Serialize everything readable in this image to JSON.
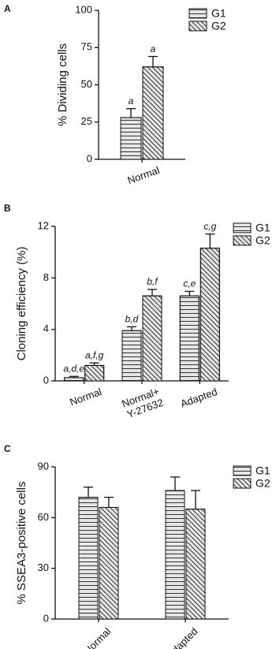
{
  "chart_data": [
    {
      "type": "bar",
      "panel": "A",
      "ylabel": "% Dividing cells",
      "categories": [
        "Normal"
      ],
      "series": [
        {
          "name": "G1",
          "color": "#e6e6e6",
          "hatch": "horizontal",
          "values": [
            28
          ],
          "errors": [
            6
          ],
          "annotations": [
            "a"
          ]
        },
        {
          "name": "G2",
          "color": "#e6e6e6",
          "hatch": "diagonal",
          "values": [
            62
          ],
          "errors": [
            7
          ],
          "annotations": [
            "a"
          ]
        }
      ],
      "ylim": [
        0,
        100
      ],
      "yticks": [
        0,
        25,
        50,
        75,
        100
      ],
      "legend": "upper right"
    },
    {
      "type": "bar",
      "panel": "B",
      "ylabel": "Cloning efficiency (%)",
      "categories": [
        "Normal",
        "Normal+\nY-27632",
        "Adapted"
      ],
      "series": [
        {
          "name": "G1",
          "color": "#e6e6e6",
          "hatch": "horizontal",
          "values": [
            0.25,
            3.9,
            6.6
          ],
          "errors": [
            0.1,
            0.3,
            0.35
          ],
          "annotations": [
            "a,d,e",
            "b,d",
            "c,e"
          ]
        },
        {
          "name": "G2",
          "color": "#e6e6e6",
          "hatch": "diagonal",
          "values": [
            1.2,
            6.6,
            10.3
          ],
          "errors": [
            0.2,
            0.5,
            1.1
          ],
          "annotations": [
            "a,f,g",
            "b,f",
            "c,g"
          ]
        }
      ],
      "ylim": [
        0,
        12
      ],
      "yticks": [
        0,
        4,
        8,
        12
      ],
      "legend": "upper right"
    },
    {
      "type": "bar",
      "panel": "C",
      "ylabel": "% SSEA3-positive cells",
      "categories": [
        "Normal",
        "Adapted"
      ],
      "series": [
        {
          "name": "G1",
          "color": "#e6e6e6",
          "hatch": "horizontal",
          "values": [
            72,
            76
          ],
          "errors": [
            6,
            8
          ]
        },
        {
          "name": "G2",
          "color": "#e6e6e6",
          "hatch": "diagonal",
          "values": [
            66,
            65
          ],
          "errors": [
            6,
            11
          ]
        }
      ],
      "ylim": [
        0,
        90
      ],
      "yticks": [
        0,
        30,
        60,
        90
      ],
      "legend": "upper right"
    }
  ]
}
